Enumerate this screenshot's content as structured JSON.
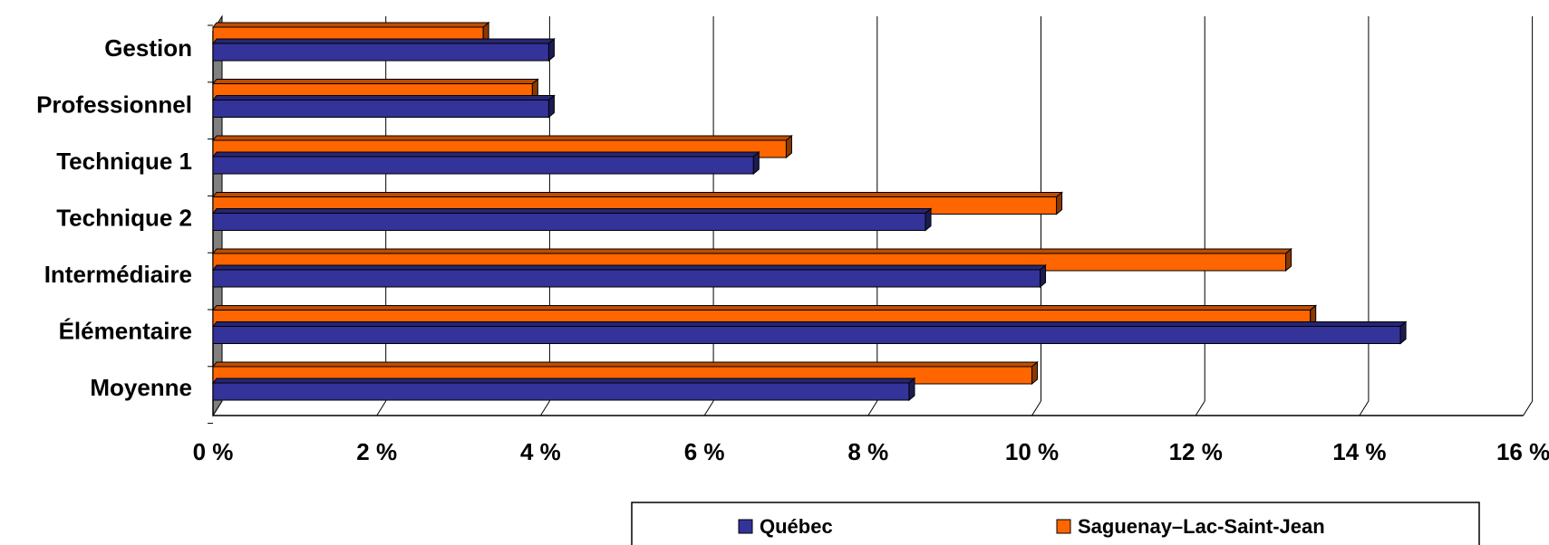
{
  "chart_data": {
    "type": "bar",
    "orientation": "horizontal",
    "categories": [
      "Gestion",
      "Professionnel",
      "Technique 1",
      "Technique 2",
      "Intermédiaire",
      "Élémentaire",
      "Moyenne"
    ],
    "series": [
      {
        "name": "Québec",
        "color": "#333399",
        "values": [
          4.1,
          4.1,
          6.6,
          8.7,
          10.1,
          14.5,
          8.5
        ]
      },
      {
        "name": "Saguenay–Lac-Saint-Jean",
        "color": "#ff6600",
        "values": [
          3.3,
          3.9,
          7.0,
          10.3,
          13.1,
          13.4,
          10.0
        ]
      }
    ],
    "xlim": [
      0,
      16
    ],
    "x_ticks": [
      "0 %",
      "2 %",
      "4 %",
      "6 %",
      "8 %",
      "10 %",
      "12 %",
      "14 %",
      "16 %"
    ],
    "grid": true,
    "legend_position": "bottom",
    "three_d": true
  }
}
